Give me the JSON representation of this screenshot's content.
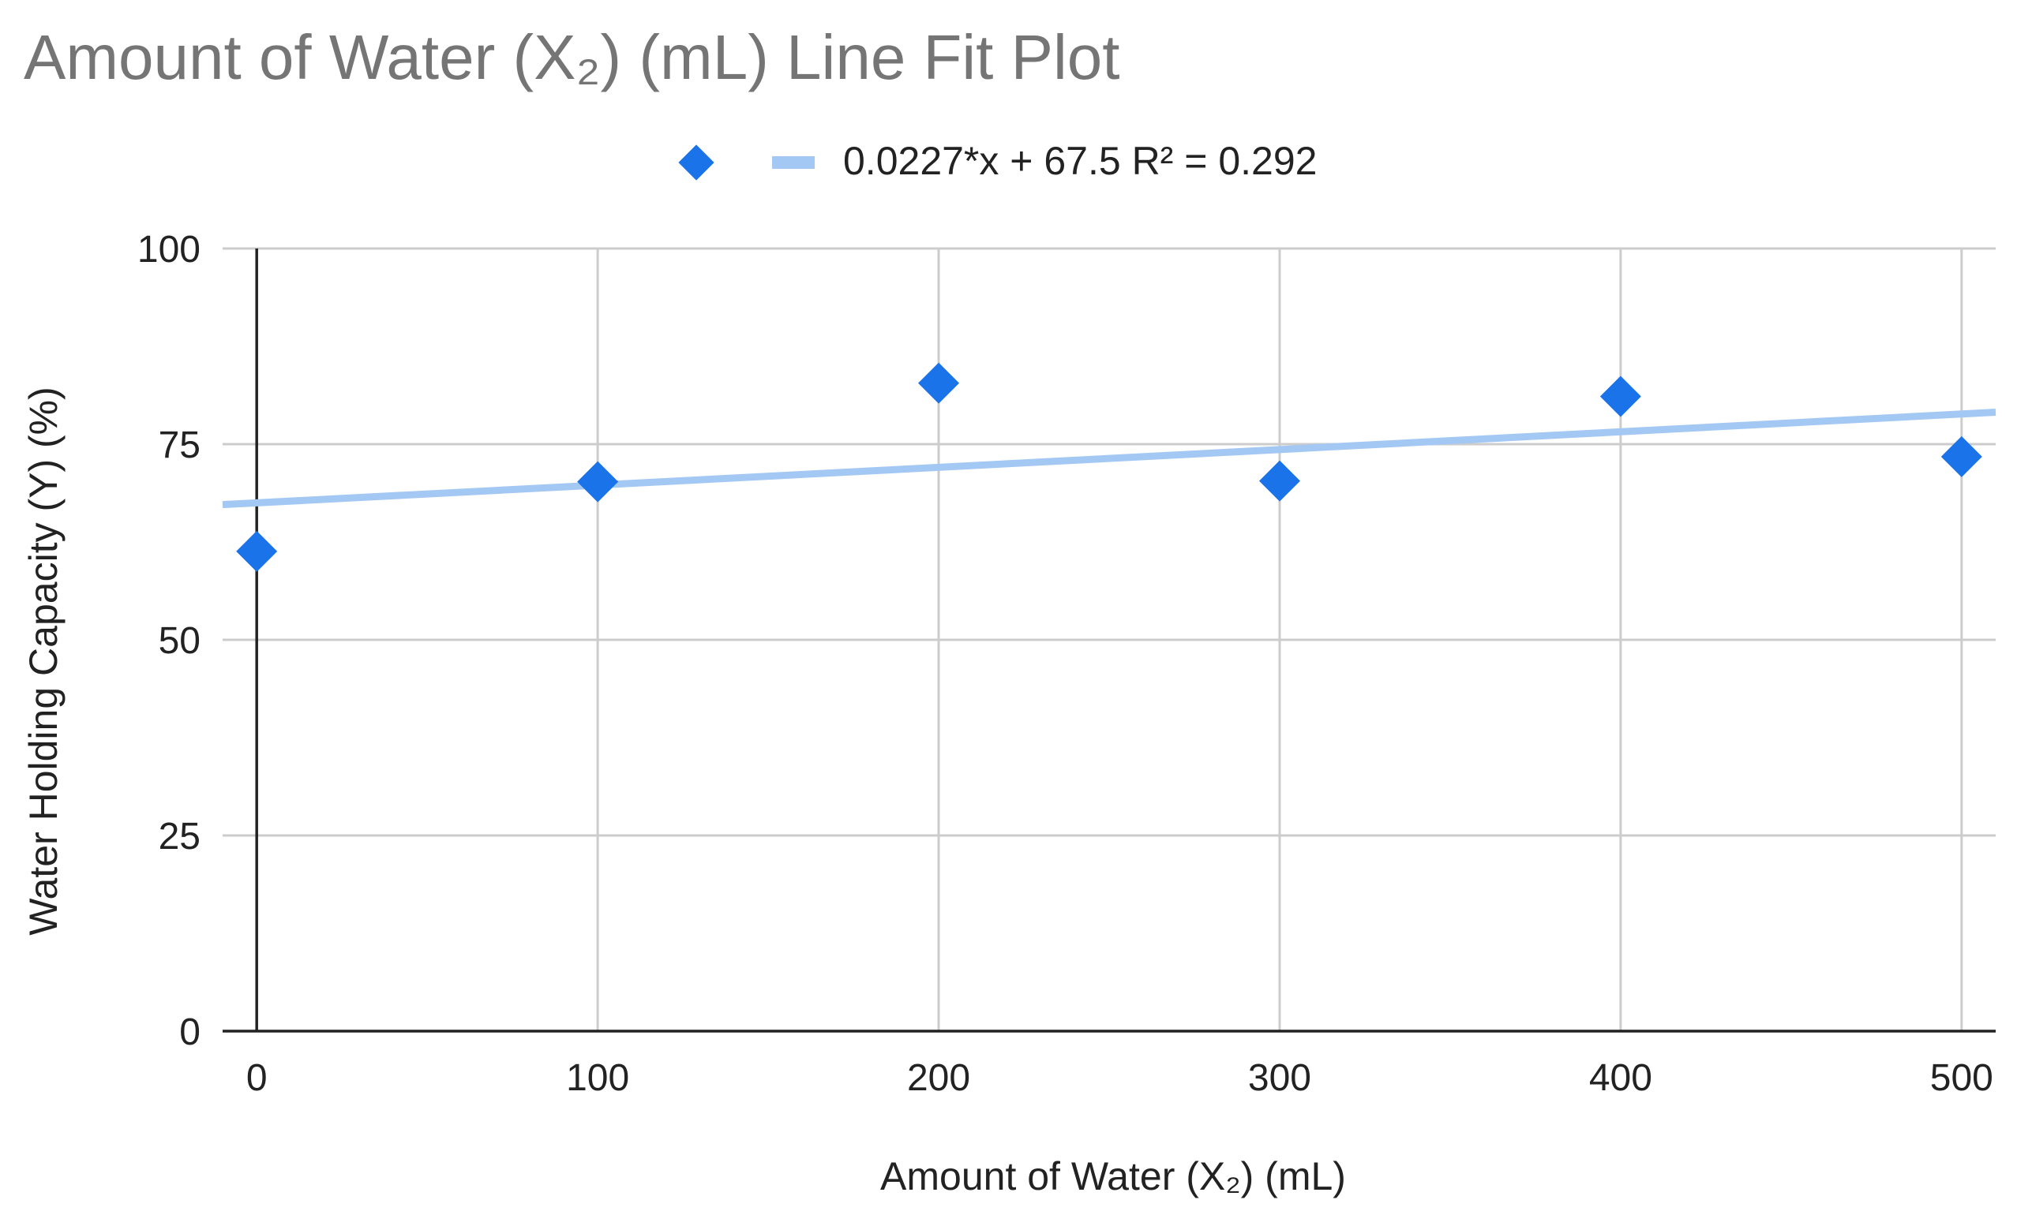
{
  "colors": {
    "background": "#ffffff",
    "title": "#757575",
    "text": "#222222",
    "grid": "#cccccc",
    "axis": "#222222",
    "marker": "#1a73e8",
    "trendline": "#a4c8f4"
  },
  "chart_data": {
    "type": "scatter",
    "title": "Amount of Water (X₂) (mL) Line Fit Plot",
    "xlabel": "Amount of Water (X₂) (mL)",
    "ylabel": "Water Holding Capacity (Y) (%)",
    "x": [
      0,
      100,
      200,
      300,
      400,
      500
    ],
    "y": [
      61.3,
      70.2,
      82.8,
      70.3,
      81.1,
      73.4
    ],
    "xlim": [
      -10,
      510
    ],
    "ylim": [
      0,
      100
    ],
    "xticks": [
      "0",
      "100",
      "200",
      "300",
      "400",
      "500"
    ],
    "yticks": [
      "0",
      "25",
      "50",
      "75",
      "100"
    ],
    "grid": true,
    "legend": {
      "position": "top-center",
      "marker_entry": "",
      "trendline_entry": "0.0227*x + 67.5 R² = 0.292"
    },
    "trendline": {
      "slope": 0.0227,
      "intercept": 67.5,
      "r_squared": 0.292,
      "label": "0.0227*x + 67.5 R² = 0.292"
    }
  }
}
